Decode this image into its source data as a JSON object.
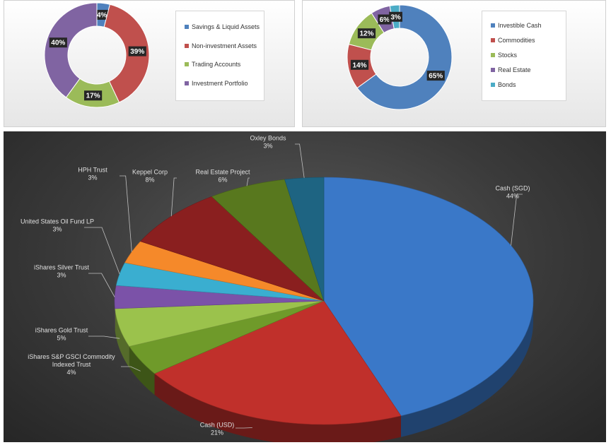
{
  "chart_data": [
    {
      "type": "pie",
      "donut": true,
      "legend": "right",
      "labels": [
        "Savings & Liquid Assets",
        "Non-investment Assets",
        "Trading Accounts",
        "Investment Portfolio"
      ],
      "values": [
        4,
        39,
        17,
        40
      ],
      "data_labels": [
        "4%",
        "39%",
        "17%",
        "40%"
      ],
      "colors": [
        "#4f81bd",
        "#c0504d",
        "#9bbb59",
        "#8064a2"
      ]
    },
    {
      "type": "pie",
      "donut": true,
      "legend": "right",
      "labels": [
        "Investible Cash",
        "Commodities",
        "Stocks",
        "Real Estate",
        "Bonds"
      ],
      "values": [
        65,
        14,
        12,
        6,
        3
      ],
      "data_labels": [
        "65%",
        "14%",
        "12%",
        "6%",
        "3%"
      ],
      "colors": [
        "#4f81bd",
        "#c0504d",
        "#9bbb59",
        "#8064a2",
        "#4bacc6"
      ]
    },
    {
      "type": "pie",
      "style": "3d-exploded-perspective",
      "labels": [
        "Cash (SGD)",
        "Cash (USD)",
        "iShares S&P GSCI Commodity Indexed Trust",
        "iShares Gold Trust",
        "iShares Silver Trust",
        "United States Oil Fund LP",
        "HPH Trust",
        "Keppel Corp",
        "Real Estate Project",
        "Oxley Bonds"
      ],
      "values": [
        44,
        21,
        4,
        5,
        3,
        3,
        3,
        8,
        6,
        3
      ],
      "data_labels": [
        "44%",
        "21%",
        "4%",
        "5%",
        "3%",
        "3%",
        "3%",
        "8%",
        "6%",
        "3%"
      ],
      "colors": [
        "#3a78c8",
        "#c0302b",
        "#6f9a2a",
        "#9bc24c",
        "#7b52a8",
        "#3aaed0",
        "#f5892a",
        "#8a1f1f",
        "#58781e",
        "#1e6482",
        "#d0550c"
      ]
    }
  ]
}
